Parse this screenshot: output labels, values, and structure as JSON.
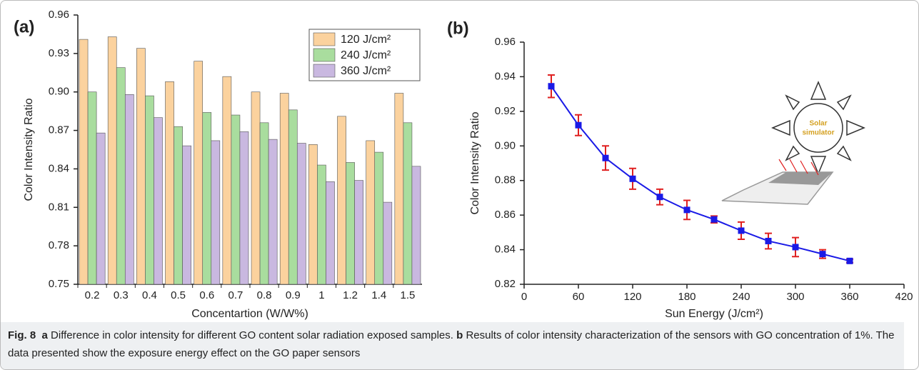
{
  "chart_data": [
    {
      "type": "bar",
      "label": "(a)",
      "x_label": "Concentartion (W/W%)",
      "y_label": "Color Intensity Ratio",
      "categories": [
        "0.2",
        "0.3",
        "0.4",
        "0.5",
        "0.6",
        "0.7",
        "0.8",
        "0.9",
        "1",
        "1.2",
        "1.4",
        "1.5"
      ],
      "series": [
        {
          "name": "120 J/cm²",
          "color": "#fbd29e",
          "values": [
            0.941,
            0.943,
            0.934,
            0.908,
            0.924,
            0.912,
            0.9,
            0.899,
            0.859,
            0.881,
            0.862,
            0.899
          ]
        },
        {
          "name": "240 J/cm²",
          "color": "#a9dd9e",
          "values": [
            0.9,
            0.919,
            0.897,
            0.873,
            0.884,
            0.882,
            0.876,
            0.886,
            0.843,
            0.845,
            0.853,
            0.876
          ]
        },
        {
          "name": "360 J/cm²",
          "color": "#c9b8e0",
          "values": [
            0.868,
            0.898,
            0.88,
            0.858,
            0.862,
            0.869,
            0.863,
            0.86,
            0.83,
            0.831,
            0.814,
            0.842
          ]
        }
      ],
      "ylim": [
        0.75,
        0.96
      ],
      "yticks": [
        0.75,
        0.78,
        0.81,
        0.84,
        0.87,
        {
          "value": 0.9,
          "label": "0.90"
        },
        0.93,
        0.96
      ],
      "legend": "top-right"
    },
    {
      "type": "line",
      "label": "(b)",
      "x_label": "Sun Energy (J/cm²)",
      "y_label": "Color Intensity Ratio",
      "x": [
        30,
        60,
        90,
        120,
        150,
        180,
        210,
        240,
        270,
        300,
        330,
        360
      ],
      "values": [
        0.9345,
        0.912,
        0.893,
        0.881,
        0.8705,
        0.863,
        0.8575,
        0.851,
        0.845,
        0.8415,
        0.8375,
        0.8335
      ],
      "errors": [
        0.0065,
        0.006,
        0.007,
        0.006,
        0.0045,
        0.0055,
        0.002,
        0.005,
        0.0045,
        0.0055,
        0.0025,
        0.001
      ],
      "color": "#1a1ae6",
      "error_color": "#e02020",
      "xlim": [
        0,
        420
      ],
      "xticks": [
        0,
        60,
        120,
        180,
        240,
        300,
        360,
        420
      ],
      "ylim": [
        0.82,
        0.96
      ],
      "yticks": [
        0.82,
        0.84,
        0.86,
        0.88,
        {
          "value": 0.9,
          "label": "0.90"
        },
        0.92,
        0.94,
        0.96
      ],
      "annotations": [
        "Solar",
        "simulator"
      ]
    }
  ],
  "caption": {
    "figure": "Fig. 8",
    "parts": [
      {
        "label": "a",
        "text": "Difference in color intensity for different GO content solar radiation exposed samples."
      },
      {
        "label": "b",
        "text": "Results of color intensity characterization of the sensors with GO concentration of 1%. The data presented show the exposure energy effect on the GO paper sensors"
      }
    ]
  }
}
